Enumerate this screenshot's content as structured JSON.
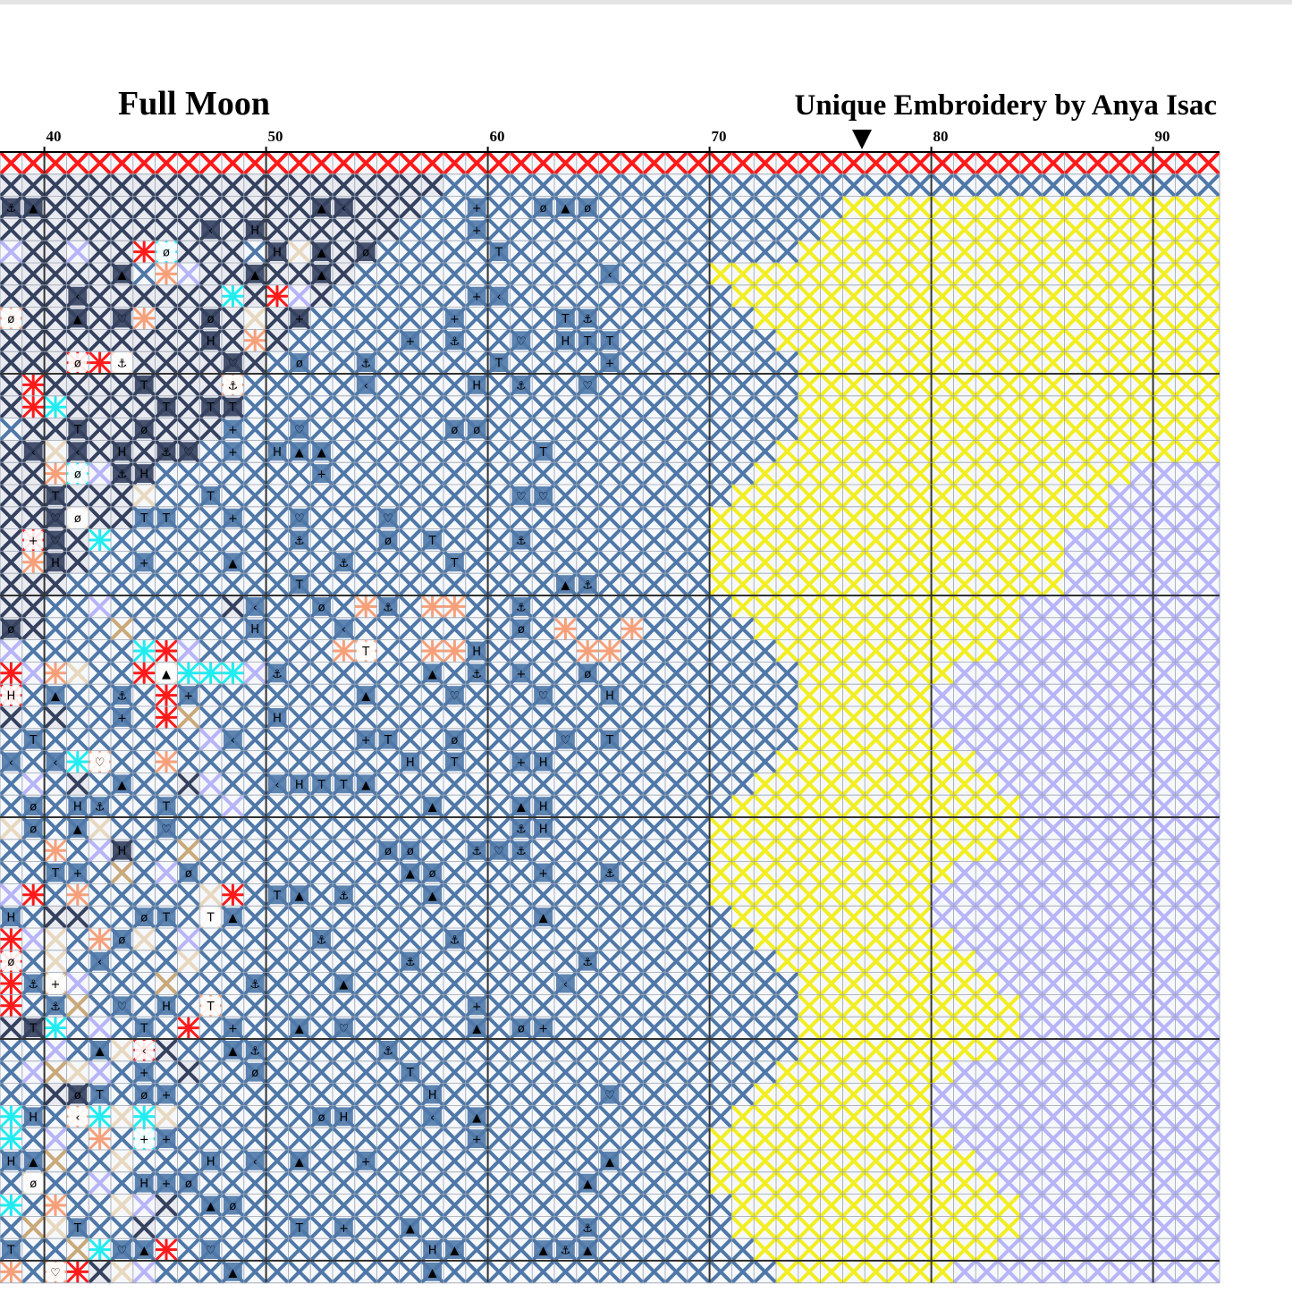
{
  "title": "Full Moon",
  "credit": "Unique Embroidery by Anya Isac",
  "column_numbers": [
    "40",
    "50",
    "60",
    "70",
    "80",
    "90"
  ],
  "center_marker": "center-arrow-icon",
  "colors": {
    "red": "#ff1a1a",
    "dark_navy": "#34415f",
    "mid_blue": "#4f78a8",
    "yellow": "#f2ee22",
    "lavender": "#b7b4f8",
    "peach": "#f6a07a",
    "cyan": "#22ecf0",
    "beige": "#e8d8c0",
    "tan": "#c9a97a",
    "dark_gray": "#5a6270"
  },
  "symbols": [
    "▲",
    "‹",
    "+",
    "T",
    "H",
    "♡",
    "⚓",
    "ø"
  ]
}
